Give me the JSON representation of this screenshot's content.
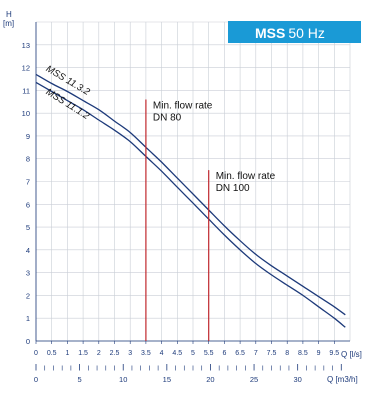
{
  "badge": {
    "brand": "MSS",
    "freq": "50 Hz",
    "bg_color": "#1a9ad6",
    "text_color": "#ffffff"
  },
  "chart_data": {
    "type": "line",
    "y_axis": {
      "label_top": "H",
      "label_unit": "[m]",
      "range": [
        0,
        14
      ],
      "ticks": [
        0,
        1,
        2,
        3,
        4,
        5,
        6,
        7,
        8,
        9,
        10,
        11,
        12,
        13
      ]
    },
    "x_axis": {
      "label": "Q [l/s]",
      "range": [
        0,
        10
      ],
      "ticks": [
        0,
        0.5,
        1,
        1.5,
        2,
        2.5,
        3,
        3.5,
        4,
        4.5,
        5,
        5.5,
        6,
        6.5,
        7,
        7.5,
        8,
        8.5,
        9,
        9.5
      ],
      "tick_labels": [
        "0",
        "0.5",
        "1",
        "1.5",
        "2",
        "2.5",
        "3",
        "3.5",
        "4",
        "4.5",
        "5",
        "5.5",
        "6",
        "6.5",
        "7",
        "7.5",
        "8",
        "8.5",
        "9",
        "9.5"
      ]
    },
    "x_axis_secondary": {
      "label": "Q [m3/h]",
      "range": [
        0,
        36
      ],
      "ticks": [
        0,
        5,
        10,
        15,
        20,
        25,
        30
      ],
      "tick_labels": [
        "0",
        "5",
        "10",
        "15",
        "20",
        "25",
        "30"
      ]
    },
    "series": [
      {
        "name": "MSS 11.3.2",
        "color": "#1d3a7a",
        "x": [
          0,
          0.5,
          1,
          1.5,
          2,
          2.5,
          3,
          3.5,
          4,
          4.5,
          5,
          5.5,
          6,
          6.5,
          7,
          7.5,
          8,
          8.5,
          9,
          9.5,
          9.85
        ],
        "y": [
          11.7,
          11.3,
          10.95,
          10.55,
          10.15,
          9.65,
          9.15,
          8.5,
          7.85,
          7.15,
          6.45,
          5.75,
          5.05,
          4.4,
          3.8,
          3.3,
          2.85,
          2.4,
          1.95,
          1.5,
          1.15
        ]
      },
      {
        "name": "MSS 11.1.2",
        "color": "#1d3a7a",
        "x": [
          0,
          0.5,
          1,
          1.5,
          2,
          2.5,
          3,
          3.5,
          4,
          4.5,
          5,
          5.5,
          6,
          6.5,
          7,
          7.5,
          8,
          8.5,
          9,
          9.5,
          9.85
        ],
        "y": [
          11.35,
          10.95,
          10.55,
          10.15,
          9.7,
          9.25,
          8.75,
          8.1,
          7.45,
          6.75,
          6.05,
          5.35,
          4.65,
          4.0,
          3.4,
          2.9,
          2.45,
          2.0,
          1.5,
          1.0,
          0.6
        ]
      }
    ],
    "annotations": [
      {
        "x": 3.5,
        "color": "#c0282d",
        "line1": "Min. flow rate",
        "line2": "DN 80",
        "y_top": 10.6
      },
      {
        "x": 5.5,
        "color": "#c0282d",
        "line1": "Min. flow rate",
        "line2": "DN 100",
        "y_top": 7.5
      }
    ],
    "grid": true
  }
}
